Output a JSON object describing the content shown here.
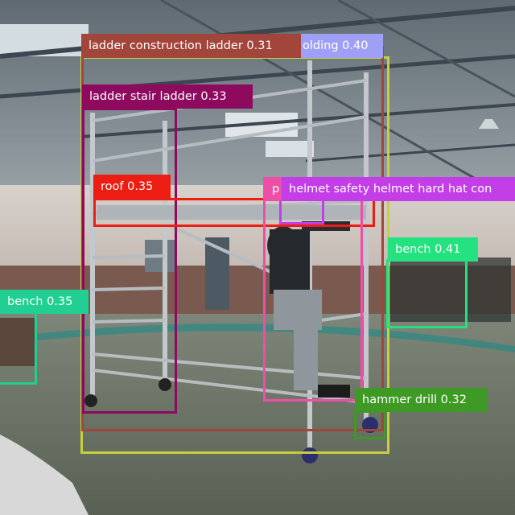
{
  "detections": [
    {
      "label": "ladder construction ladder 0.31",
      "color": "#a2453a"
    },
    {
      "label": "olding 0.40",
      "color": "#9f9ff5"
    },
    {
      "label": "ladder stair ladder 0.33",
      "color": "#8d0a5f"
    },
    {
      "label": "roof 0.35",
      "color": "#ec1d12"
    },
    {
      "label": "p",
      "color": "#ee4fa6"
    },
    {
      "label": "helmet safety helmet hard hat con",
      "color": "#c43ee8"
    },
    {
      "label": "bench 0.41",
      "color": "#23e27f"
    },
    {
      "label": "bench 0.35",
      "color": "#21cf92"
    },
    {
      "label": "hammer drill 0.32",
      "color": "#3e9a24"
    }
  ],
  "extra_colors": {
    "scaffolding_box": "#c9cf3c"
  }
}
